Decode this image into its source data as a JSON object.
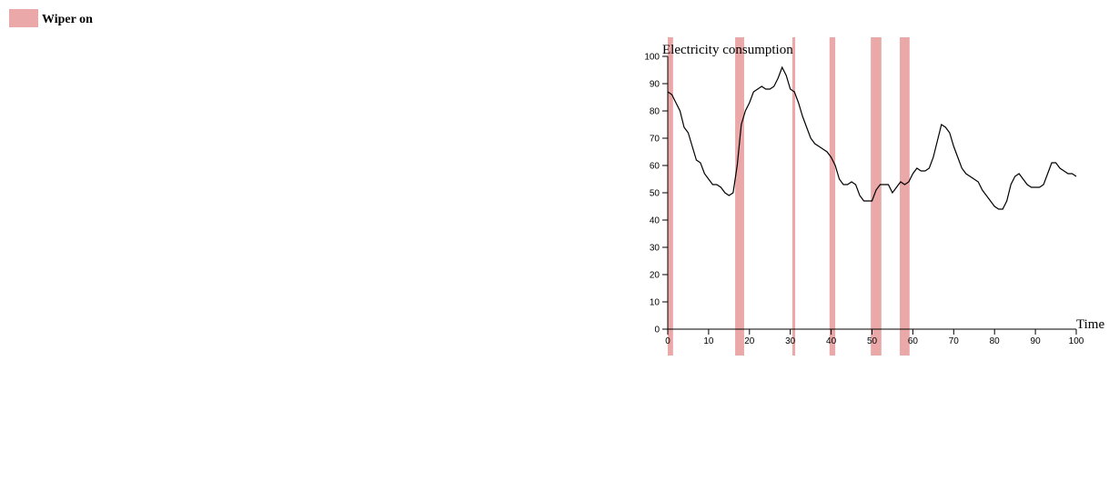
{
  "chart_data": {
    "type": "line",
    "y_label": "Electricity consumption",
    "x_label": "Time",
    "legend_label": "Wiper on",
    "band_color": "#eaa8a8",
    "x": [
      0,
      1,
      2,
      3,
      4,
      5,
      6,
      7,
      8,
      9,
      10,
      11,
      12,
      13,
      14,
      15,
      16,
      17,
      18,
      19,
      20,
      21,
      22,
      23,
      24,
      25,
      26,
      27,
      28,
      29,
      30,
      31,
      32,
      33,
      34,
      35,
      36,
      37,
      38,
      39,
      40,
      41,
      42,
      43,
      44,
      45,
      46,
      47,
      48,
      49,
      50,
      51,
      52,
      53,
      54,
      55,
      56,
      57,
      58,
      59,
      60,
      61,
      62,
      63,
      64,
      65,
      66,
      67,
      68,
      69,
      70,
      71,
      72,
      73,
      74,
      75,
      76,
      77,
      78,
      79,
      80,
      81,
      82,
      83,
      84,
      85,
      86,
      87,
      88,
      89,
      90,
      91,
      92,
      93,
      94,
      95,
      96,
      97,
      98,
      99,
      100
    ],
    "series": [
      {
        "name": "Electricity consumption",
        "color": "#000000",
        "values": [
          87,
          86,
          83,
          80,
          74,
          72,
          67,
          62,
          61,
          57,
          55,
          53,
          53,
          52,
          50,
          49,
          50,
          60,
          75,
          80,
          83,
          87,
          88,
          89,
          88,
          88,
          89,
          92,
          96,
          93,
          88,
          87,
          83,
          78,
          74,
          70,
          68,
          67,
          66,
          65,
          63,
          60,
          55,
          53,
          53,
          54,
          53,
          49,
          47,
          47,
          47,
          51,
          53,
          53,
          53,
          50,
          52,
          54,
          53,
          54,
          57,
          59,
          58,
          58,
          59,
          63,
          69,
          75,
          74,
          72,
          67,
          63,
          59,
          57,
          56,
          55,
          54,
          51,
          49,
          47,
          45,
          44,
          44,
          47,
          53,
          56,
          57,
          55,
          53,
          52,
          52,
          52,
          53,
          57,
          61,
          61,
          59,
          58,
          57,
          57,
          56
        ]
      }
    ],
    "wiper_intervals": [
      [
        0,
        1.3
      ],
      [
        16.5,
        18.7
      ],
      [
        30.5,
        31.2
      ],
      [
        39.6,
        41
      ],
      [
        49.7,
        52.3
      ],
      [
        56.8,
        59.2
      ]
    ],
    "xlim": [
      0,
      100
    ],
    "ylim": [
      0,
      100
    ],
    "xticks": [
      0,
      10,
      20,
      30,
      40,
      50,
      60,
      70,
      80,
      90,
      100
    ],
    "yticks": [
      0,
      10,
      20,
      30,
      40,
      50,
      60,
      70,
      80,
      90,
      100
    ]
  }
}
